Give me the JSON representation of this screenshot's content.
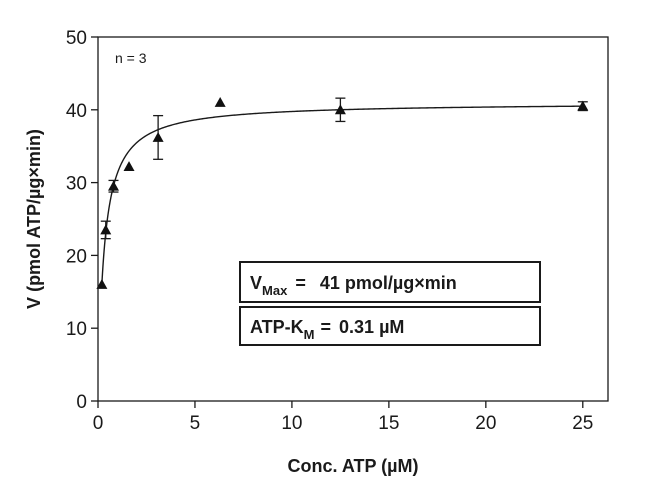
{
  "chart_data": {
    "type": "scatter",
    "xlabel": "Conc. ATP (µM)",
    "ylabel": "V (pmol ATP/µg×min)",
    "xlim": [
      0,
      26.3
    ],
    "ylim": [
      0,
      50
    ],
    "xticks": [
      "0",
      "5",
      "10",
      "15",
      "20",
      "25"
    ],
    "yticks": [
      "0",
      "10",
      "20",
      "30",
      "40",
      "50"
    ],
    "grid": false,
    "annotation": "n = 3",
    "points": [
      {
        "x": 0.2,
        "y": 16.0,
        "err": 0
      },
      {
        "x": 0.4,
        "y": 23.5,
        "err": 1.2
      },
      {
        "x": 0.8,
        "y": 29.5,
        "err": 0.8
      },
      {
        "x": 1.6,
        "y": 32.2,
        "err": 0
      },
      {
        "x": 3.1,
        "y": 36.2,
        "err": 3.0
      },
      {
        "x": 6.3,
        "y": 41.0,
        "err": 0
      },
      {
        "x": 12.5,
        "y": 40.0,
        "err": 1.6
      },
      {
        "x": 25.0,
        "y": 40.5,
        "err": 0.6
      }
    ],
    "fit": {
      "model": "michaelis-menten",
      "vmax": 41,
      "km": 0.31
    },
    "vmax_box": {
      "main": "V",
      "sub": "Max",
      "eq": "=",
      "value": "41 pmol/µg×min"
    },
    "km_box": {
      "main": "ATP-K",
      "sub": "M",
      "eq": "=",
      "value": "0.31 µM"
    }
  }
}
